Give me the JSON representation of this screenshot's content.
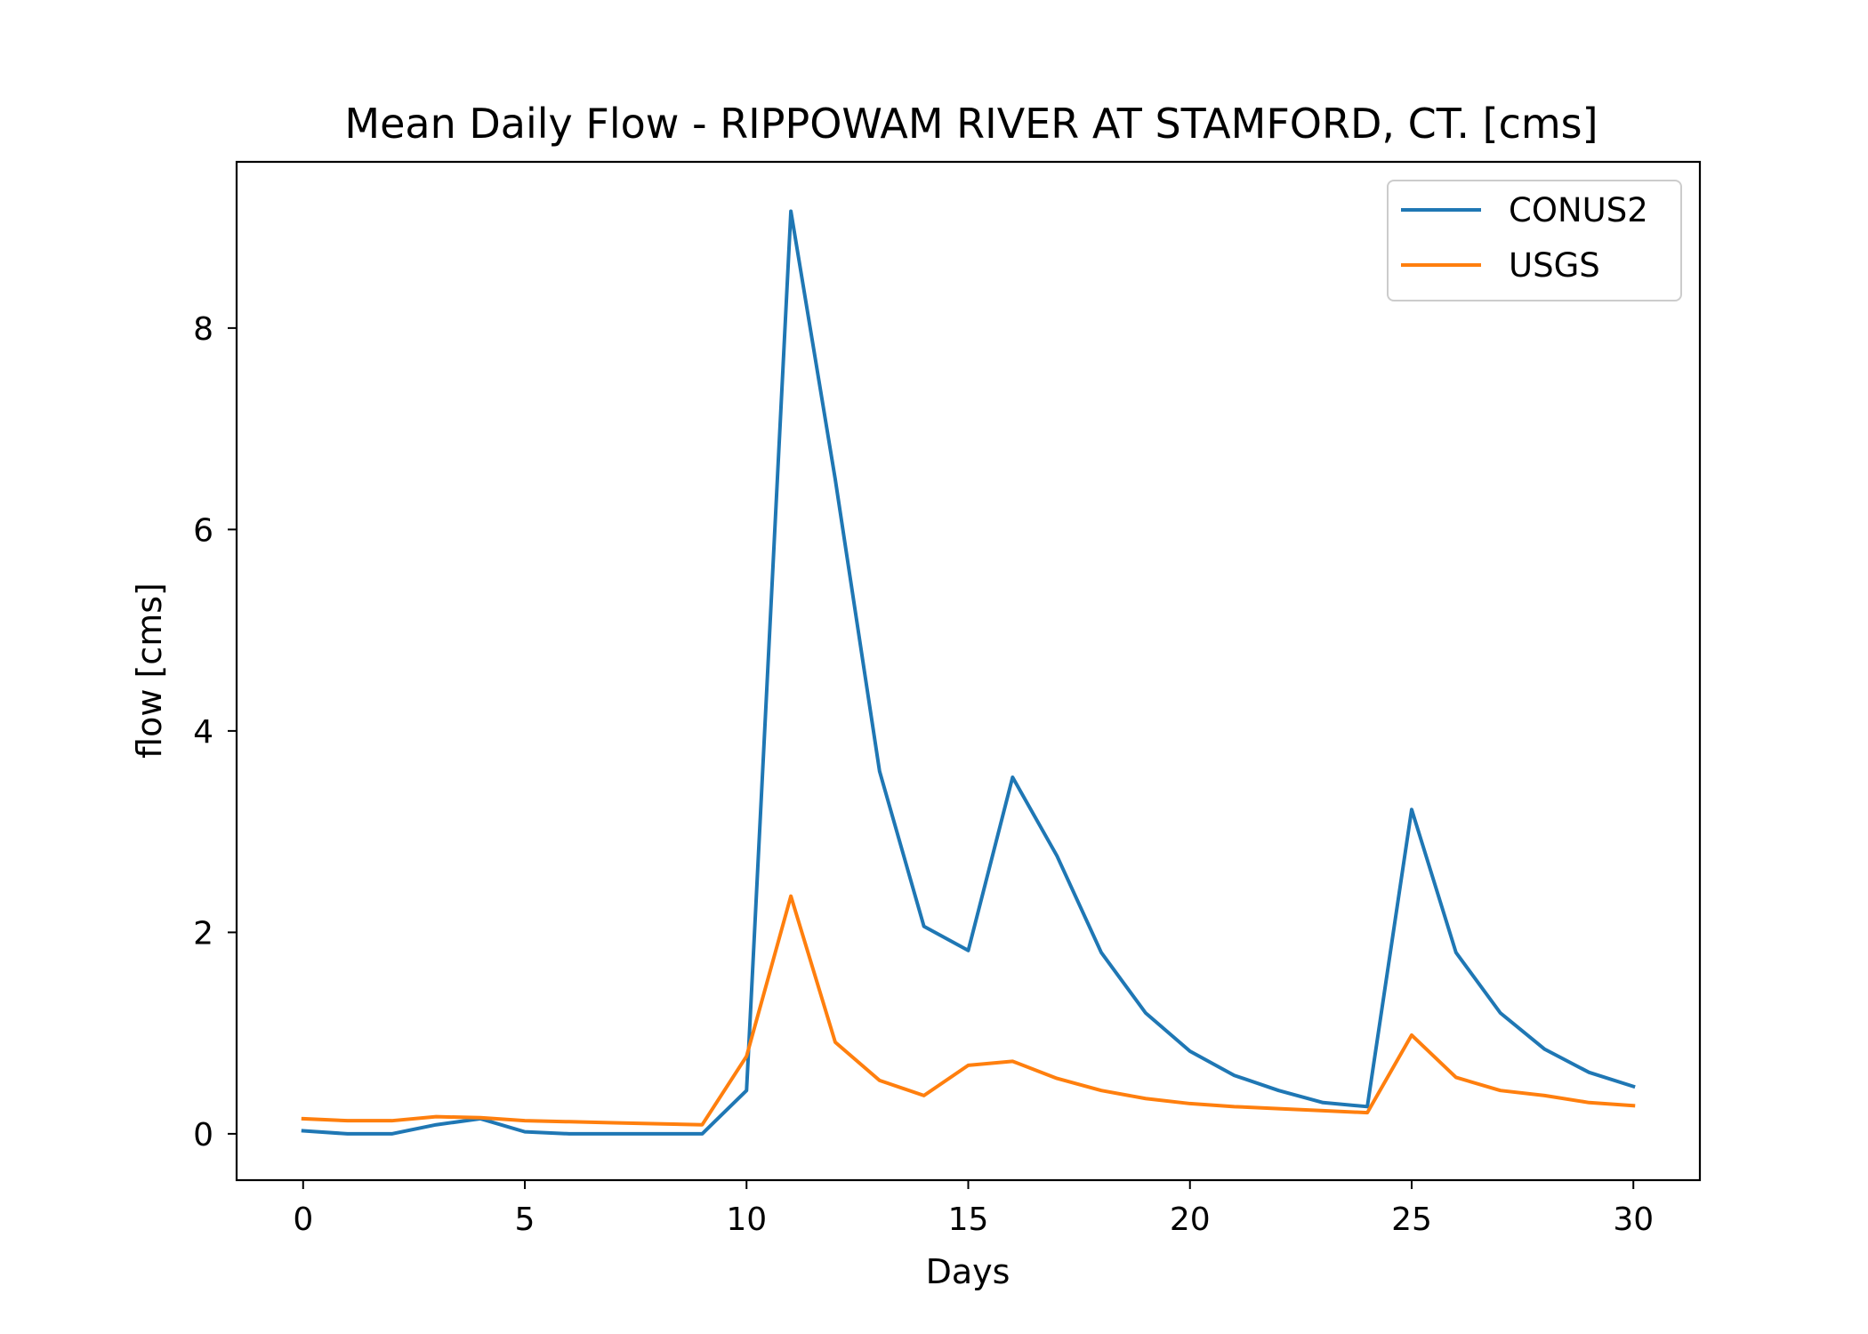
{
  "chart_data": {
    "type": "line",
    "title": "Mean Daily Flow - RIPPOWAM RIVER AT STAMFORD, CT. [cms]",
    "xlabel": "Days",
    "ylabel": "flow [cms]",
    "xlim": [
      -1.5,
      31.5
    ],
    "ylim": [
      -0.46,
      9.65
    ],
    "xticks": [
      0,
      5,
      10,
      15,
      20,
      25,
      30
    ],
    "yticks": [
      0,
      2,
      4,
      6,
      8
    ],
    "grid": false,
    "legend_position": "top-right",
    "x": [
      0,
      1,
      2,
      3,
      4,
      5,
      6,
      7,
      8,
      9,
      10,
      11,
      12,
      13,
      14,
      15,
      16,
      17,
      18,
      19,
      20,
      21,
      22,
      23,
      24,
      25,
      26,
      27,
      28,
      29,
      30
    ],
    "series": [
      {
        "name": "CONUS2",
        "color": "#1f77b4",
        "values": [
          0.03,
          0.0,
          0.0,
          0.09,
          0.15,
          0.02,
          0.0,
          0.0,
          0.0,
          0.0,
          0.43,
          9.16,
          6.5,
          3.6,
          2.06,
          1.82,
          3.54,
          2.76,
          1.8,
          1.2,
          0.82,
          0.58,
          0.43,
          0.31,
          0.27,
          3.22,
          1.8,
          1.2,
          0.84,
          0.61,
          0.47
        ]
      },
      {
        "name": "USGS",
        "color": "#ff7f0e",
        "values": [
          0.15,
          0.13,
          0.13,
          0.17,
          0.16,
          0.13,
          0.12,
          0.11,
          0.1,
          0.09,
          0.77,
          2.36,
          0.91,
          0.53,
          0.38,
          0.68,
          0.72,
          0.55,
          0.43,
          0.35,
          0.3,
          0.27,
          0.25,
          0.23,
          0.21,
          0.98,
          0.56,
          0.43,
          0.38,
          0.31,
          0.28
        ]
      }
    ]
  }
}
